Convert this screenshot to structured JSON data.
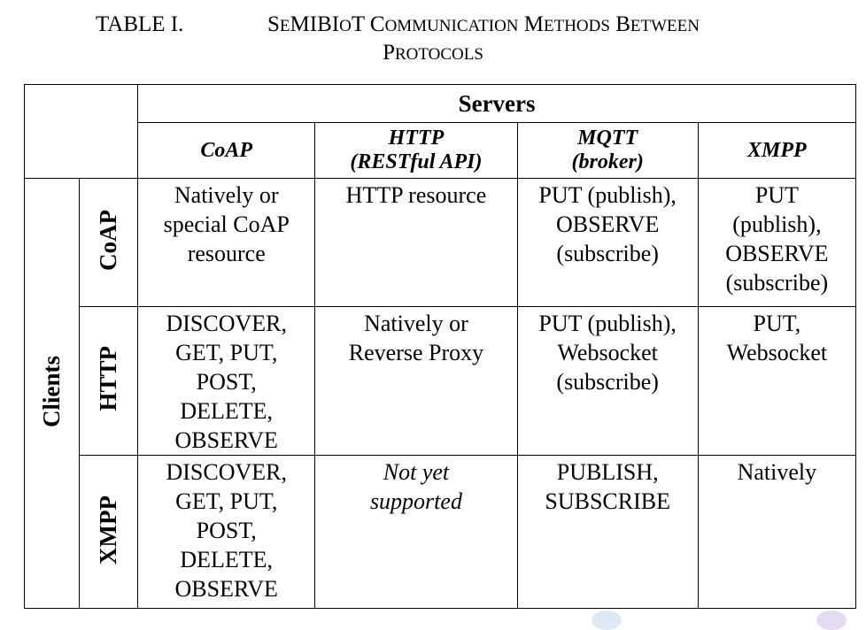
{
  "caption": {
    "label": "TABLE I.",
    "title_line1_parts": [
      {
        "text": "S",
        "size": "big"
      },
      {
        "text": "E",
        "size": "small"
      },
      {
        "text": "MIBI",
        "size": "big"
      },
      {
        "text": "O",
        "size": "small"
      },
      {
        "text": "T C",
        "size": "big"
      },
      {
        "text": "OMMUNICATION",
        "size": "small"
      },
      {
        "text": " M",
        "size": "big"
      },
      {
        "text": "ETHODS",
        "size": "small"
      },
      {
        "text": " B",
        "size": "big"
      },
      {
        "text": "ETWEEN",
        "size": "small"
      }
    ],
    "title_line2_parts": [
      {
        "text": "P",
        "size": "big"
      },
      {
        "text": "ROTOCOLS",
        "size": "small"
      }
    ]
  },
  "table": {
    "servers_label": "Servers",
    "clients_label": "Clients",
    "columns": [
      {
        "line1": "CoAP",
        "line2": ""
      },
      {
        "line1": "HTTP",
        "line2": "(RESTful API)"
      },
      {
        "line1": "MQTT",
        "line2": "(broker)"
      },
      {
        "line1": "XMPP",
        "line2": ""
      }
    ],
    "rows": [
      {
        "client": "CoAP",
        "cells": [
          {
            "lines": [
              "Natively or",
              "special CoAP",
              "resource"
            ],
            "italic": false
          },
          {
            "lines": [
              "HTTP resource"
            ],
            "italic": false
          },
          {
            "lines": [
              "PUT (publish),",
              "OBSERVE",
              "(subscribe)"
            ],
            "italic": false
          },
          {
            "lines": [
              "PUT",
              "(publish),",
              "OBSERVE",
              "(subscribe)"
            ],
            "italic": false
          }
        ]
      },
      {
        "client": "HTTP",
        "cells": [
          {
            "lines": [
              "DISCOVER,",
              "GET, PUT,",
              "POST,",
              "DELETE,",
              "OBSERVE"
            ],
            "italic": false
          },
          {
            "lines": [
              "Natively or",
              "Reverse Proxy"
            ],
            "italic": false
          },
          {
            "lines": [
              "PUT (publish),",
              "Websocket",
              "(subscribe)"
            ],
            "italic": false
          },
          {
            "lines": [
              "PUT,",
              "Websocket"
            ],
            "italic": false
          }
        ]
      },
      {
        "client": "XMPP",
        "cells": [
          {
            "lines": [
              "DISCOVER,",
              "GET, PUT,",
              "POST,",
              "DELETE,",
              "OBSERVE"
            ],
            "italic": false
          },
          {
            "lines": [
              "Not yet",
              "supported"
            ],
            "italic": true
          },
          {
            "lines": [
              "PUBLISH,",
              "SUBSCRIBE"
            ],
            "italic": false
          },
          {
            "lines": [
              "Natively"
            ],
            "italic": false
          }
        ]
      }
    ]
  }
}
